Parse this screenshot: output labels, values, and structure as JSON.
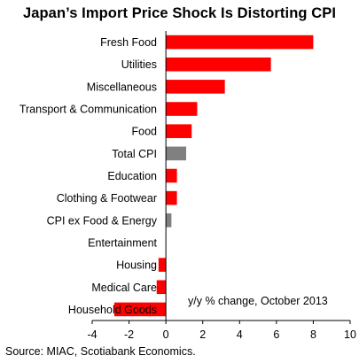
{
  "title": "Japan’s Import Price Shock Is Distorting CPI",
  "source": "Source: MIAC, Scotiabank Economics.",
  "colors": {
    "positive": "#ff0000",
    "negative": "#ff0000",
    "aggregate": "#808080",
    "axis": "#000000"
  },
  "chart_data": {
    "type": "bar",
    "orientation": "horizontal",
    "title": "Japan’s Import Price Shock Is Distorting CPI",
    "annotation": "y/y % change, October 2013",
    "xlim": [
      -4,
      10
    ],
    "xticks": [
      -4,
      -2,
      0,
      2,
      4,
      6,
      8,
      10
    ],
    "grid": false,
    "categories": [
      "Fresh Food",
      "Utilities",
      "Miscellaneous",
      "Transport & Communication",
      "Food",
      "Total CPI",
      "Education",
      "Clothing & Footwear",
      "CPI ex Food & Energy",
      "Entertainment",
      "Housing",
      "Medical Care",
      "Household Goods"
    ],
    "values": [
      8.0,
      5.7,
      3.2,
      1.7,
      1.4,
      1.1,
      0.6,
      0.6,
      0.3,
      0.0,
      -0.4,
      -0.5,
      -2.8
    ],
    "bar_colors": [
      "#ff0000",
      "#ff0000",
      "#ff0000",
      "#ff0000",
      "#ff0000",
      "#808080",
      "#ff0000",
      "#ff0000",
      "#808080",
      "#ff0000",
      "#ff0000",
      "#ff0000",
      "#ff0000"
    ]
  }
}
